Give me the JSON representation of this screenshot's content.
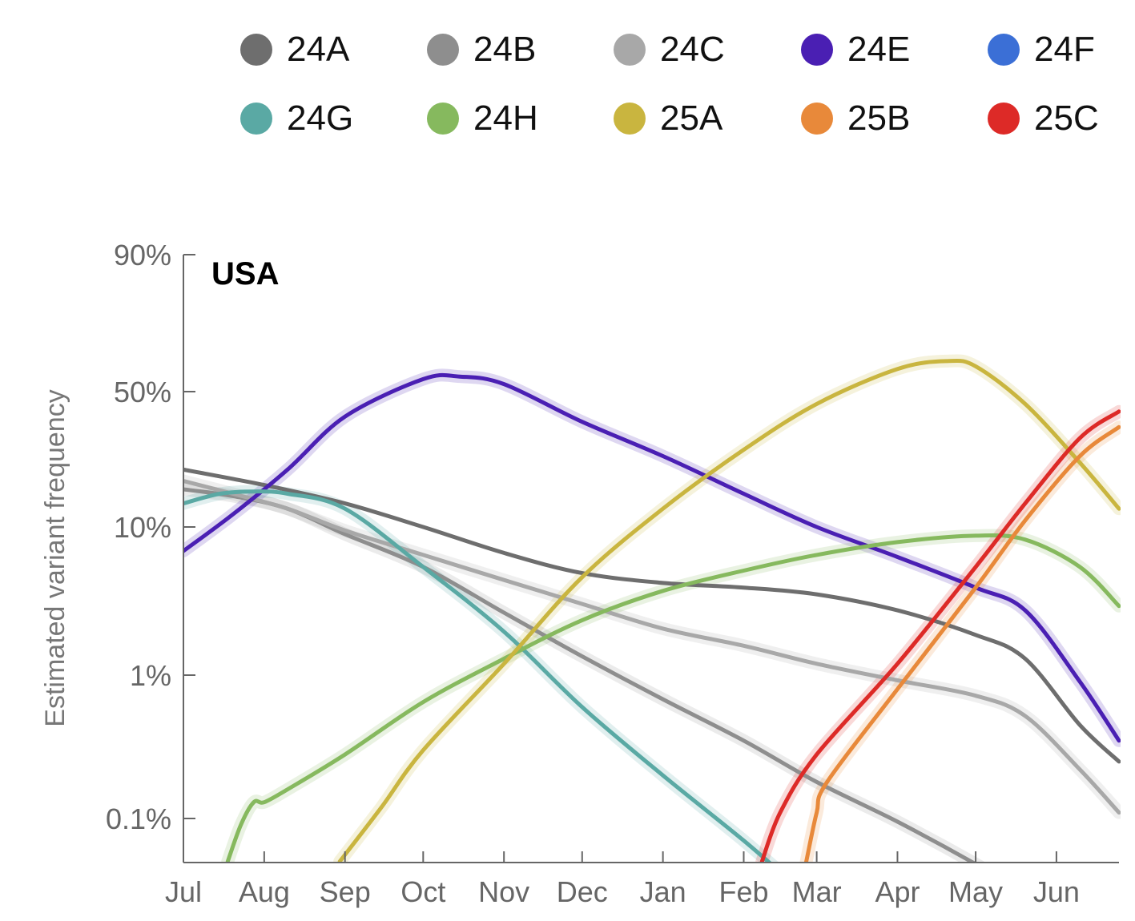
{
  "chart_data": {
    "type": "line",
    "title": "USA",
    "ylabel": "Estimated variant frequency",
    "xlabel": "",
    "yscale": "logit",
    "x_ticks": [
      "Jul",
      "Aug",
      "Sep",
      "Oct",
      "Nov",
      "Dec",
      "Jan",
      "Feb",
      "Mar",
      "Apr",
      "May",
      "Jun"
    ],
    "y_ticks": [
      "0.1%",
      "1%",
      "10%",
      "50%",
      "90%"
    ],
    "y_tick_values": [
      0.001,
      0.01,
      0.1,
      0.5,
      0.9
    ],
    "xlim": [
      "2024-07-01",
      "2025-06-25"
    ],
    "ylim": [
      0.0005,
      0.9
    ],
    "legend_position": "top",
    "series": [
      {
        "name": "24A",
        "color": "#6e6e6e",
        "band": false,
        "x": [
          "2024-07-01",
          "2024-08-01",
          "2024-09-01",
          "2024-10-01",
          "2024-11-01",
          "2024-12-01",
          "2025-01-01",
          "2025-02-01",
          "2025-03-01",
          "2025-04-01",
          "2025-05-01",
          "2025-05-20",
          "2025-06-10",
          "2025-06-25"
        ],
        "y": [
          0.22,
          0.18,
          0.14,
          0.1,
          0.068,
          0.05,
          0.043,
          0.04,
          0.036,
          0.028,
          0.019,
          0.013,
          0.0045,
          0.0025
        ]
      },
      {
        "name": "24B",
        "color": "#8e8e8e",
        "band": true,
        "x": [
          "2024-07-01",
          "2024-07-20",
          "2024-08-10",
          "2024-09-01",
          "2024-10-01",
          "2024-11-01",
          "2024-12-01",
          "2025-01-01",
          "2025-02-01",
          "2025-03-01",
          "2025-04-01",
          "2025-05-01",
          "2025-05-13"
        ],
        "y": [
          0.17,
          0.155,
          0.13,
          0.09,
          0.055,
          0.027,
          0.0135,
          0.0068,
          0.0035,
          0.0018,
          0.00095,
          0.00048,
          0.00035
        ]
      },
      {
        "name": "24C",
        "color": "#a8a8a8",
        "band": true,
        "x": [
          "2024-07-01",
          "2024-07-20",
          "2024-08-10",
          "2024-09-01",
          "2024-10-01",
          "2024-11-01",
          "2024-12-01",
          "2025-01-01",
          "2025-02-01",
          "2025-03-01",
          "2025-04-01",
          "2025-05-01",
          "2025-05-20",
          "2025-06-10",
          "2025-06-25"
        ],
        "y": [
          0.19,
          0.16,
          0.13,
          0.095,
          0.066,
          0.045,
          0.031,
          0.021,
          0.016,
          0.012,
          0.0092,
          0.0072,
          0.0052,
          0.0022,
          0.0011
        ]
      },
      {
        "name": "24E",
        "color": "#4a1fb3",
        "band": true,
        "x": [
          "2024-07-01",
          "2024-07-20",
          "2024-08-10",
          "2024-09-01",
          "2024-10-01",
          "2024-10-15",
          "2024-11-01",
          "2024-12-01",
          "2025-01-01",
          "2025-02-01",
          "2025-03-01",
          "2025-04-01",
          "2025-05-01",
          "2025-05-20",
          "2025-06-10",
          "2025-06-25"
        ],
        "y": [
          0.07,
          0.12,
          0.22,
          0.4,
          0.55,
          0.56,
          0.53,
          0.38,
          0.26,
          0.16,
          0.1,
          0.064,
          0.04,
          0.028,
          0.009,
          0.0035
        ]
      },
      {
        "name": "24F",
        "color": "#3b6fd6",
        "band": false,
        "x": [],
        "y": []
      },
      {
        "name": "24G",
        "color": "#5aa9a4",
        "band": true,
        "x": [
          "2024-07-01",
          "2024-07-15",
          "2024-07-28",
          "2024-08-10",
          "2024-09-01",
          "2024-10-01",
          "2024-11-01",
          "2024-12-01",
          "2025-01-01",
          "2025-02-01",
          "2025-02-20"
        ],
        "y": [
          0.14,
          0.16,
          0.165,
          0.16,
          0.13,
          0.055,
          0.02,
          0.006,
          0.002,
          0.0007,
          0.00035
        ]
      },
      {
        "name": "24H",
        "color": "#86b95e",
        "band": true,
        "x": [
          "2024-07-18",
          "2024-07-23",
          "2024-07-28",
          "2024-08-01",
          "2024-08-10",
          "2024-09-01",
          "2024-10-01",
          "2024-11-01",
          "2024-12-01",
          "2025-01-01",
          "2025-02-01",
          "2025-03-01",
          "2025-04-01",
          "2025-05-01",
          "2025-05-20",
          "2025-06-10",
          "2025-06-25"
        ],
        "y": [
          0.0005,
          0.0009,
          0.0013,
          0.0013,
          0.0016,
          0.0028,
          0.0065,
          0.013,
          0.024,
          0.038,
          0.052,
          0.066,
          0.08,
          0.088,
          0.083,
          0.055,
          0.03
        ]
      },
      {
        "name": "25A",
        "color": "#c9b53f",
        "band": true,
        "x": [
          "2024-08-30",
          "2024-09-15",
          "2024-10-01",
          "2024-11-01",
          "2024-12-01",
          "2025-01-01",
          "2025-02-01",
          "2025-03-01",
          "2025-04-01",
          "2025-04-20",
          "2025-05-01",
          "2025-05-20",
          "2025-06-10",
          "2025-06-25"
        ],
        "y": [
          0.0005,
          0.0012,
          0.003,
          0.012,
          0.047,
          0.13,
          0.28,
          0.45,
          0.59,
          0.62,
          0.6,
          0.45,
          0.24,
          0.13
        ]
      },
      {
        "name": "25B",
        "color": "#e8893a",
        "band": true,
        "x": [
          "2025-02-25",
          "2025-03-01",
          "2025-03-05",
          "2025-04-01",
          "2025-05-01",
          "2025-05-20",
          "2025-06-10",
          "2025-06-25"
        ],
        "y": [
          0.0005,
          0.0011,
          0.0018,
          0.008,
          0.04,
          0.11,
          0.26,
          0.36
        ]
      },
      {
        "name": "25C",
        "color": "#dd2a27",
        "band": true,
        "x": [
          "2025-02-08",
          "2025-02-15",
          "2025-03-01",
          "2025-04-01",
          "2025-05-01",
          "2025-05-20",
          "2025-06-10",
          "2025-06-25"
        ],
        "y": [
          0.0005,
          0.0011,
          0.0028,
          0.012,
          0.055,
          0.14,
          0.32,
          0.42
        ]
      }
    ]
  }
}
